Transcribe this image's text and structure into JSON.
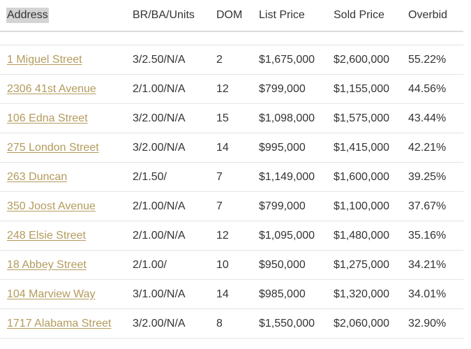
{
  "table": {
    "headers": {
      "address": "Address",
      "br_ba_units": "BR/BA/Units",
      "dom": "DOM",
      "list_price": "List Price",
      "sold_price": "Sold Price",
      "overbid": "Overbid"
    },
    "rows": [
      {
        "address": "1 Miguel Street",
        "br_ba_units": "3/2.50/N/A",
        "dom": "2",
        "list_price": "$1,675,000",
        "sold_price": "$2,600,000",
        "overbid": "55.22%"
      },
      {
        "address": "2306 41st Avenue",
        "br_ba_units": "2/1.00/N/A",
        "dom": "12",
        "list_price": "$799,000",
        "sold_price": "$1,155,000",
        "overbid": "44.56%"
      },
      {
        "address": "106 Edna Street",
        "br_ba_units": "3/2.00/N/A",
        "dom": "15",
        "list_price": "$1,098,000",
        "sold_price": "$1,575,000",
        "overbid": "43.44%"
      },
      {
        "address": "275 London Street",
        "br_ba_units": "3/2.00/N/A",
        "dom": "14",
        "list_price": "$995,000",
        "sold_price": "$1,415,000",
        "overbid": "42.21%"
      },
      {
        "address": "263 Duncan",
        "br_ba_units": "2/1.50/",
        "dom": "7",
        "list_price": "$1,149,000",
        "sold_price": "$1,600,000",
        "overbid": "39.25%"
      },
      {
        "address": "350 Joost Avenue",
        "br_ba_units": "2/1.00/N/A",
        "dom": "7",
        "list_price": "$799,000",
        "sold_price": "$1,100,000",
        "overbid": "37.67%"
      },
      {
        "address": "248 Elsie Street",
        "br_ba_units": "2/1.00/N/A",
        "dom": "12",
        "list_price": "$1,095,000",
        "sold_price": "$1,480,000",
        "overbid": "35.16%"
      },
      {
        "address": "18 Abbey Street",
        "br_ba_units": "2/1.00/",
        "dom": "10",
        "list_price": "$950,000",
        "sold_price": "$1,275,000",
        "overbid": "34.21%"
      },
      {
        "address": "104 Marview Way",
        "br_ba_units": "3/1.00/N/A",
        "dom": "14",
        "list_price": "$985,000",
        "sold_price": "$1,320,000",
        "overbid": "34.01%"
      },
      {
        "address": "1717 Alabama Street",
        "br_ba_units": "3/2.00/N/A",
        "dom": "8",
        "list_price": "$1,550,000",
        "sold_price": "$2,060,000",
        "overbid": "32.90%"
      }
    ]
  },
  "colors": {
    "link": "#b39b5c",
    "text": "#333333",
    "header_highlight": "#d4d4d4",
    "row_border": "#e3e3e3"
  }
}
